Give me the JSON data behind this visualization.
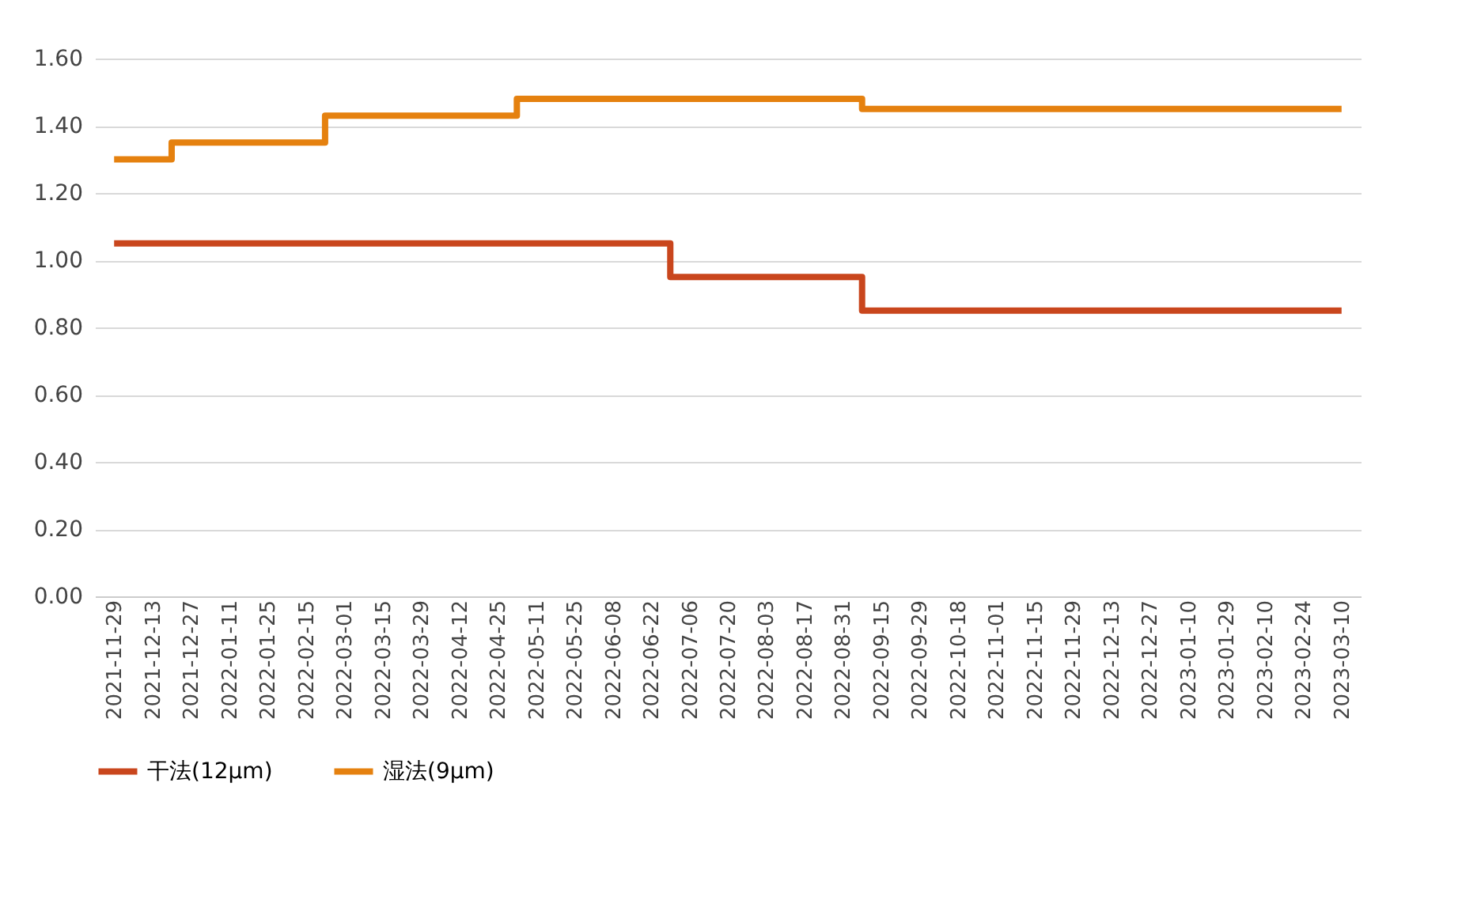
{
  "chart_data": {
    "type": "step",
    "categories": [
      "2021-11-29",
      "2021-12-13",
      "2021-12-27",
      "2022-01-11",
      "2022-01-25",
      "2022-02-15",
      "2022-03-01",
      "2022-03-15",
      "2022-03-29",
      "2022-04-12",
      "2022-04-25",
      "2022-05-11",
      "2022-05-25",
      "2022-06-08",
      "2022-06-22",
      "2022-07-06",
      "2022-07-20",
      "2022-08-03",
      "2022-08-17",
      "2022-08-31",
      "2022-09-15",
      "2022-09-29",
      "2022-10-18",
      "2022-11-01",
      "2022-11-15",
      "2022-11-29",
      "2022-12-13",
      "2022-12-27",
      "2023-01-10",
      "2023-01-29",
      "2023-02-10",
      "2023-02-24",
      "2023-03-10"
    ],
    "series": [
      {
        "name": "干法(12μm)",
        "color": "#c9461d",
        "values": [
          1.05,
          1.05,
          1.05,
          1.05,
          1.05,
          1.05,
          1.05,
          1.05,
          1.05,
          1.05,
          1.05,
          1.05,
          1.05,
          1.05,
          1.05,
          0.95,
          0.95,
          0.95,
          0.95,
          0.95,
          0.85,
          0.85,
          0.85,
          0.85,
          0.85,
          0.85,
          0.85,
          0.85,
          0.85,
          0.85,
          0.85,
          0.85,
          0.85
        ]
      },
      {
        "name": "湿法(9μm)",
        "color": "#e5810f",
        "values": [
          1.3,
          1.3,
          1.35,
          1.35,
          1.35,
          1.35,
          1.43,
          1.43,
          1.43,
          1.43,
          1.43,
          1.48,
          1.48,
          1.48,
          1.48,
          1.48,
          1.48,
          1.48,
          1.48,
          1.48,
          1.45,
          1.45,
          1.45,
          1.45,
          1.45,
          1.45,
          1.45,
          1.45,
          1.45,
          1.45,
          1.45,
          1.45,
          1.45
        ]
      }
    ],
    "ylim": [
      0,
      1.6
    ],
    "yticks": [
      {
        "value": 0,
        "label": "0.00"
      },
      {
        "value": 0.2,
        "label": "0.20"
      },
      {
        "value": 0.4,
        "label": "0.40"
      },
      {
        "value": 0.6,
        "label": "0.60"
      },
      {
        "value": 0.8,
        "label": "0.80"
      },
      {
        "value": 1,
        "label": "1.00"
      },
      {
        "value": 1.2,
        "label": "1.20"
      },
      {
        "value": 1.4,
        "label": "1.40"
      },
      {
        "value": 1.6,
        "label": "1.60"
      }
    ],
    "grid": "y",
    "legend": "bottom",
    "marker": "none",
    "line_style": "solid"
  }
}
